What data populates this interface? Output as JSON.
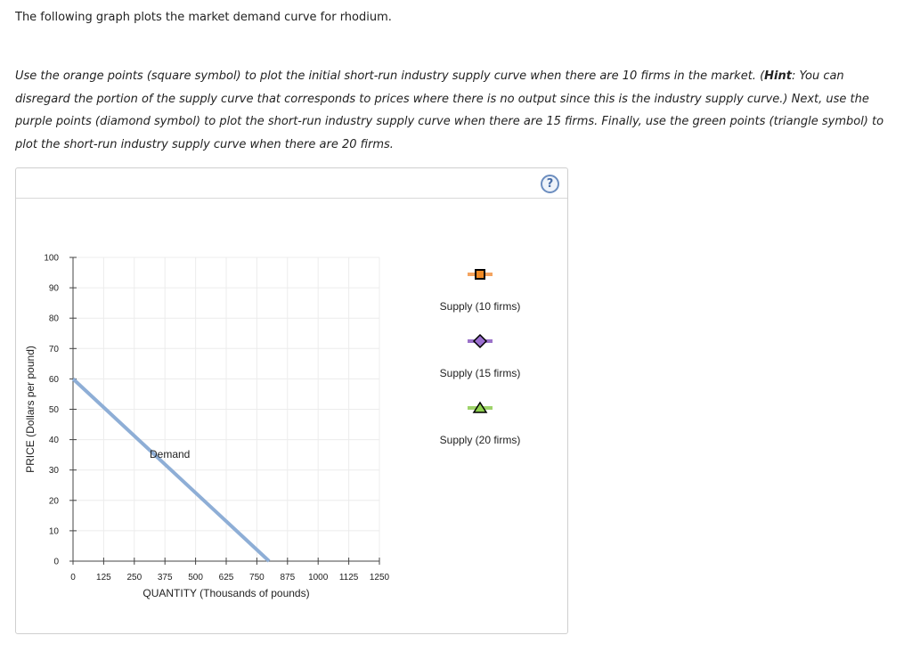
{
  "intro_text": "The following graph plots the market demand curve for rhodium.",
  "instructions": {
    "part1": "Use the orange points (square symbol) to plot the initial short-run industry supply curve when there are 10 firms in the market. (",
    "hint_label": "Hint",
    "part2": ": You can disregard the portion of the supply curve that corresponds to prices where there is no output since this is the industry supply curve.) Next, use the purple points (diamond symbol) to plot the short-run industry supply curve when there are 15 firms. Finally, use the green points (triangle symbol) to plot the short-run industry supply curve when there are 20 firms."
  },
  "help_button": {
    "label": "?",
    "color": "#4a6fa8"
  },
  "chart_data": {
    "type": "line",
    "xlabel": "QUANTITY (Thousands of pounds)",
    "ylabel": "PRICE (Dollars per pound)",
    "xlim": [
      0,
      1250
    ],
    "ylim": [
      0,
      100
    ],
    "x_ticks": [
      0,
      125,
      250,
      375,
      500,
      625,
      750,
      875,
      1000,
      1125,
      1250
    ],
    "y_ticks": [
      0,
      10,
      20,
      30,
      40,
      50,
      60,
      70,
      80,
      90,
      100
    ],
    "grid": true,
    "series": [
      {
        "name": "Demand",
        "color": "#8eaed6",
        "points": [
          [
            0,
            60
          ],
          [
            800,
            0
          ]
        ]
      }
    ],
    "legend": [
      {
        "label": "Supply (10 firms)",
        "symbol": "square",
        "line_color": "#f4a460",
        "marker_fill": "#f08a24"
      },
      {
        "label": "Supply (15 firms)",
        "symbol": "diamond",
        "line_color": "#9b72c9",
        "marker_fill": "#9b6fd0"
      },
      {
        "label": "Supply (20 firms)",
        "symbol": "triangle",
        "line_color": "#9ed36a",
        "marker_fill": "#8fd14f"
      }
    ]
  }
}
